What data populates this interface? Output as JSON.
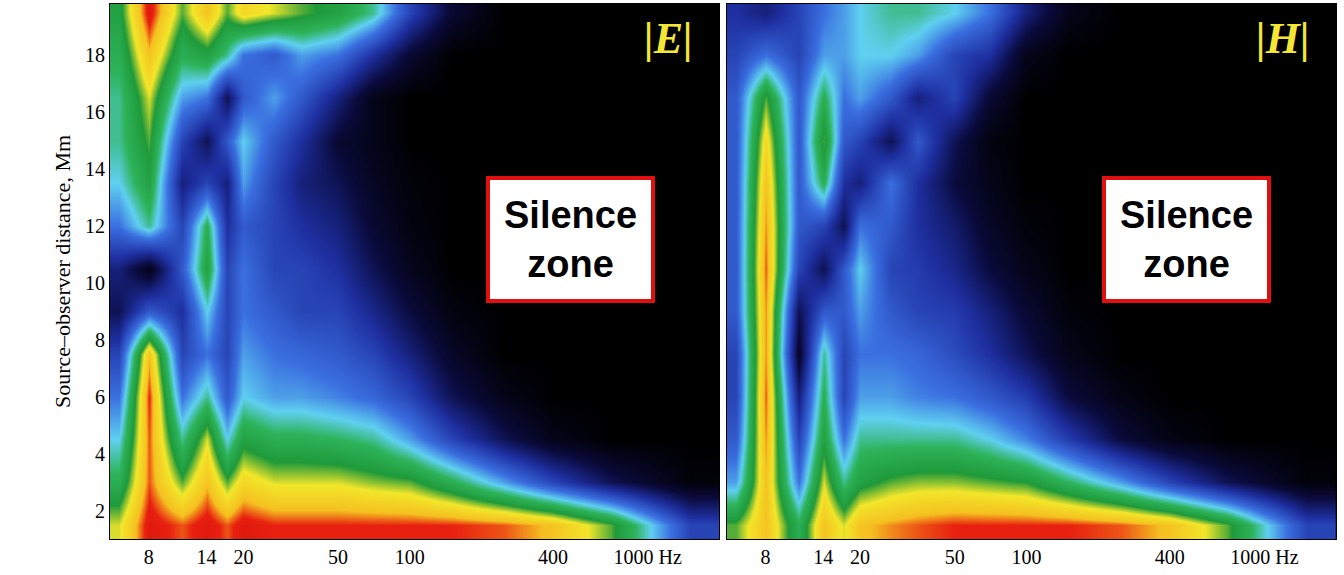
{
  "chart_data": [
    {
      "type": "heatmap",
      "title": "|E|",
      "annotations": [
        "Silence zone"
      ],
      "ylabel": "Source–observer distance, Mm",
      "log": "x",
      "grid": false,
      "xlim": [
        5.5,
        2000
      ],
      "ylim": [
        1,
        19.8
      ],
      "xticks": [
        8,
        14,
        20,
        50,
        100,
        400,
        {
          "value": 1000,
          "label": "1000 Hz"
        }
      ],
      "yticks": [
        2,
        4,
        6,
        8,
        10,
        12,
        14,
        16,
        18
      ],
      "zlim": [
        0,
        1
      ],
      "x": [
        6,
        8,
        11,
        14,
        17,
        20,
        27,
        35,
        50,
        70,
        100,
        150,
        250,
        400,
        700,
        1500
      ],
      "y": [
        1.5,
        3,
        4.5,
        6,
        7.5,
        9,
        10.5,
        12,
        13.5,
        15,
        16.5,
        18,
        19.5
      ],
      "z": [
        [
          0.75,
          0.95,
          0.9,
          0.95,
          0.9,
          0.95,
          0.92,
          0.92,
          0.92,
          0.92,
          0.92,
          0.92,
          0.9,
          0.85,
          0.7,
          0.3
        ],
        [
          0.6,
          0.9,
          0.7,
          0.85,
          0.7,
          0.8,
          0.75,
          0.75,
          0.75,
          0.72,
          0.7,
          0.6,
          0.45,
          0.3,
          0.15,
          0.02
        ],
        [
          0.5,
          0.9,
          0.55,
          0.75,
          0.5,
          0.65,
          0.6,
          0.6,
          0.58,
          0.55,
          0.45,
          0.3,
          0.15,
          0.05,
          0,
          0
        ],
        [
          0.4,
          0.92,
          0.4,
          0.55,
          0.35,
          0.5,
          0.45,
          0.45,
          0.42,
          0.38,
          0.3,
          0.15,
          0.05,
          0,
          0,
          0
        ],
        [
          0.3,
          0.85,
          0.3,
          0.4,
          0.3,
          0.45,
          0.4,
          0.38,
          0.35,
          0.3,
          0.2,
          0.08,
          0,
          0,
          0,
          0
        ],
        [
          0.15,
          0.35,
          0.25,
          0.5,
          0.3,
          0.4,
          0.35,
          0.3,
          0.3,
          0.22,
          0.12,
          0.03,
          0,
          0,
          0,
          0
        ],
        [
          0.2,
          0.05,
          0.35,
          0.65,
          0.3,
          0.4,
          0.3,
          0.3,
          0.25,
          0.15,
          0.06,
          0,
          0,
          0,
          0,
          0
        ],
        [
          0.4,
          0.55,
          0.3,
          0.6,
          0.25,
          0.35,
          0.3,
          0.25,
          0.2,
          0.1,
          0.03,
          0,
          0,
          0,
          0,
          0
        ],
        [
          0.5,
          0.65,
          0.2,
          0.3,
          0.2,
          0.45,
          0.3,
          0.2,
          0.15,
          0.07,
          0.02,
          0,
          0,
          0,
          0,
          0
        ],
        [
          0.55,
          0.7,
          0.3,
          0.15,
          0.35,
          0.5,
          0.35,
          0.25,
          0.1,
          0.05,
          0,
          0,
          0,
          0,
          0,
          0
        ],
        [
          0.55,
          0.75,
          0.45,
          0.4,
          0.15,
          0.35,
          0.45,
          0.35,
          0.2,
          0.05,
          0,
          0,
          0,
          0,
          0,
          0
        ],
        [
          0.6,
          0.85,
          0.6,
          0.65,
          0.55,
          0.4,
          0.35,
          0.45,
          0.4,
          0.25,
          0.1,
          0,
          0,
          0,
          0,
          0
        ],
        [
          0.65,
          0.95,
          0.7,
          0.85,
          0.7,
          0.8,
          0.75,
          0.7,
          0.65,
          0.55,
          0.3,
          0.1,
          0,
          0,
          0,
          0
        ]
      ]
    },
    {
      "type": "heatmap",
      "title": "|H|",
      "annotations": [
        "Silence zone"
      ],
      "log": "x",
      "grid": false,
      "tick_labels": "x",
      "xlim": [
        5.5,
        2000
      ],
      "ylim": [
        1,
        19.8
      ],
      "xticks": [
        8,
        14,
        20,
        50,
        100,
        400,
        {
          "value": 1000,
          "label": "1000 Hz"
        }
      ],
      "yticks": [
        2,
        4,
        6,
        8,
        10,
        12,
        14,
        16,
        18
      ],
      "zlim": [
        0,
        1
      ],
      "x": [
        6,
        8,
        11,
        14,
        17,
        20,
        27,
        35,
        50,
        70,
        100,
        150,
        250,
        400,
        700,
        1500
      ],
      "y": [
        1.5,
        3,
        4.5,
        6,
        7.5,
        9,
        10.5,
        12,
        13.5,
        15,
        16.5,
        18,
        19.5
      ],
      "z": [
        [
          0.7,
          0.85,
          0.6,
          0.85,
          0.75,
          0.85,
          0.88,
          0.9,
          0.92,
          0.92,
          0.92,
          0.92,
          0.9,
          0.85,
          0.7,
          0.3
        ],
        [
          0.45,
          0.85,
          0.4,
          0.75,
          0.55,
          0.65,
          0.7,
          0.72,
          0.72,
          0.7,
          0.68,
          0.58,
          0.45,
          0.3,
          0.15,
          0.02
        ],
        [
          0.35,
          0.88,
          0.3,
          0.65,
          0.4,
          0.55,
          0.55,
          0.55,
          0.55,
          0.5,
          0.42,
          0.28,
          0.12,
          0.04,
          0,
          0
        ],
        [
          0.3,
          0.9,
          0.2,
          0.6,
          0.3,
          0.45,
          0.45,
          0.42,
          0.4,
          0.35,
          0.28,
          0.12,
          0.04,
          0,
          0,
          0
        ],
        [
          0.3,
          0.88,
          0.08,
          0.55,
          0.3,
          0.4,
          0.4,
          0.38,
          0.32,
          0.25,
          0.15,
          0.05,
          0,
          0,
          0,
          0
        ],
        [
          0.35,
          0.88,
          0.15,
          0.35,
          0.35,
          0.45,
          0.35,
          0.3,
          0.28,
          0.2,
          0.1,
          0.02,
          0,
          0,
          0,
          0
        ],
        [
          0.35,
          0.9,
          0.3,
          0.15,
          0.35,
          0.5,
          0.3,
          0.28,
          0.22,
          0.12,
          0.05,
          0,
          0,
          0,
          0,
          0
        ],
        [
          0.35,
          0.88,
          0.35,
          0.3,
          0.15,
          0.4,
          0.35,
          0.25,
          0.18,
          0.08,
          0.02,
          0,
          0,
          0,
          0,
          0
        ],
        [
          0.35,
          0.85,
          0.35,
          0.6,
          0.25,
          0.2,
          0.4,
          0.25,
          0.12,
          0.05,
          0,
          0,
          0,
          0,
          0,
          0
        ],
        [
          0.35,
          0.8,
          0.35,
          0.7,
          0.35,
          0.3,
          0.15,
          0.35,
          0.15,
          0.03,
          0,
          0,
          0,
          0,
          0,
          0
        ],
        [
          0.35,
          0.7,
          0.35,
          0.6,
          0.4,
          0.45,
          0.35,
          0.2,
          0.3,
          0.1,
          0,
          0,
          0,
          0,
          0,
          0
        ],
        [
          0.3,
          0.4,
          0.3,
          0.45,
          0.45,
          0.5,
          0.5,
          0.45,
          0.3,
          0.25,
          0.05,
          0,
          0,
          0,
          0,
          0
        ],
        [
          0.25,
          0.2,
          0.3,
          0.4,
          0.45,
          0.5,
          0.55,
          0.55,
          0.5,
          0.4,
          0.2,
          0.05,
          0,
          0,
          0,
          0
        ]
      ]
    }
  ]
}
